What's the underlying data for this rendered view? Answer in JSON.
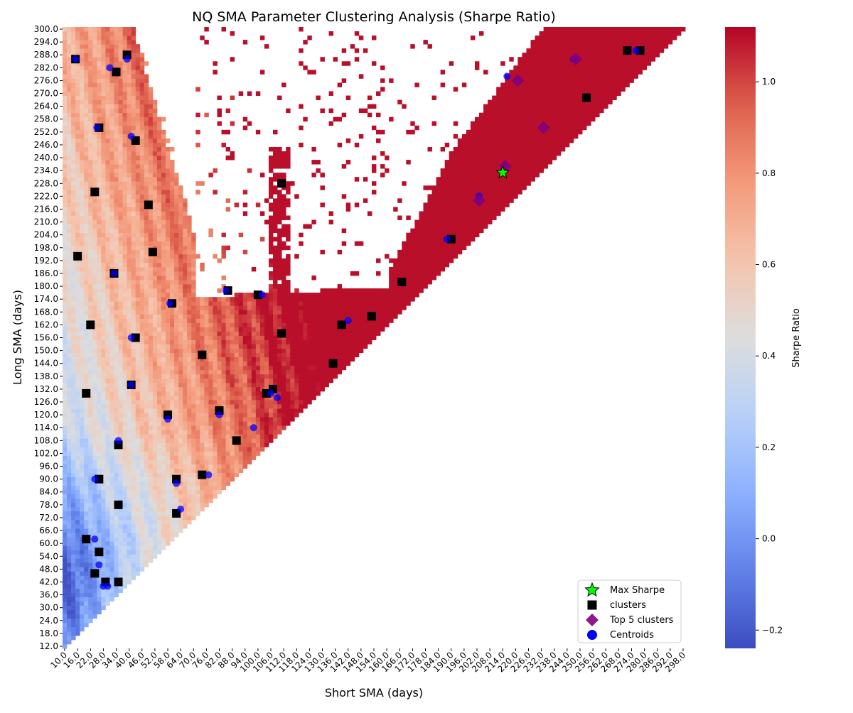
{
  "chart_data": {
    "type": "heatmap",
    "title": "NQ SMA Parameter Clustering Analysis (Sharpe Ratio)",
    "xlabel": "Short SMA (days)",
    "ylabel": "Long SMA (days)",
    "colorbar_label": "Sharpe Ratio",
    "colormap": "coolwarm",
    "value_range": [
      -0.24,
      1.12
    ],
    "colorbar_ticks": [
      "−0.2",
      "0.0",
      "0.2",
      "0.4",
      "0.6",
      "0.8",
      "1.0"
    ],
    "colorbar_tick_values": [
      -0.2,
      0.0,
      0.2,
      0.4,
      0.6,
      0.8,
      1.0
    ],
    "x_ticks": [
      "10.0",
      "16.0",
      "22.0",
      "28.0",
      "34.0",
      "40.0",
      "46.0",
      "52.0",
      "58.0",
      "64.0",
      "70.0",
      "76.0",
      "82.0",
      "88.0",
      "94.0",
      "100.0",
      "106.0",
      "112.0",
      "118.0",
      "124.0",
      "130.0",
      "136.0",
      "142.0",
      "148.0",
      "154.0",
      "160.0",
      "166.0",
      "172.0",
      "178.0",
      "184.0",
      "190.0",
      "196.0",
      "202.0",
      "208.0",
      "214.0",
      "220.0",
      "226.0",
      "232.0",
      "238.0",
      "244.0",
      "250.0",
      "256.0",
      "262.0",
      "268.0",
      "274.0",
      "280.0",
      "286.0",
      "292.0",
      "298.0"
    ],
    "y_ticks": [
      "300.0",
      "294.0",
      "288.0",
      "282.0",
      "276.0",
      "270.0",
      "264.0",
      "258.0",
      "252.0",
      "246.0",
      "240.0",
      "234.0",
      "228.0",
      "222.0",
      "216.0",
      "210.0",
      "204.0",
      "198.0",
      "192.0",
      "186.0",
      "180.0",
      "174.0",
      "168.0",
      "162.0",
      "156.0",
      "150.0",
      "144.0",
      "138.0",
      "132.0",
      "126.0",
      "120.0",
      "114.0",
      "108.0",
      "102.0",
      "96.0",
      "90.0",
      "84.0",
      "78.0",
      "72.0",
      "66.0",
      "60.0",
      "54.0",
      "48.0",
      "42.0",
      "36.0",
      "30.0",
      "24.0",
      "18.0",
      "12.0"
    ],
    "x_range": [
      10,
      300
    ],
    "y_range": [
      12,
      300
    ],
    "cell_step": 2,
    "grid": false,
    "legend_position": "bottom-right",
    "legend": [
      {
        "label": "Max Sharpe",
        "marker": "star",
        "color": "#00ff00"
      },
      {
        "label": "clusters",
        "marker": "square",
        "color": "#000000"
      },
      {
        "label": "Top 5 clusters",
        "marker": "diamond",
        "color": "#800080"
      },
      {
        "label": "Centroids",
        "marker": "circle",
        "color": "#0000ff"
      }
    ],
    "max_sharpe": {
      "x": 214,
      "y": 233,
      "value": 1.1
    },
    "clusters": [
      [
        15,
        286
      ],
      [
        39,
        288
      ],
      [
        34,
        280
      ],
      [
        26,
        254
      ],
      [
        43,
        248
      ],
      [
        24,
        224
      ],
      [
        49,
        218
      ],
      [
        16,
        194
      ],
      [
        51,
        196
      ],
      [
        33,
        186
      ],
      [
        60,
        172
      ],
      [
        22,
        162
      ],
      [
        43,
        156
      ],
      [
        74,
        148
      ],
      [
        41,
        134
      ],
      [
        20,
        130
      ],
      [
        58,
        120
      ],
      [
        82,
        122
      ],
      [
        90,
        108
      ],
      [
        35,
        106
      ],
      [
        62,
        90
      ],
      [
        26,
        90
      ],
      [
        74,
        92
      ],
      [
        35,
        78
      ],
      [
        62,
        74
      ],
      [
        20,
        62
      ],
      [
        26,
        56
      ],
      [
        24,
        46
      ],
      [
        29,
        42
      ],
      [
        35,
        42
      ],
      [
        111,
        228
      ],
      [
        86,
        178
      ],
      [
        100,
        176
      ],
      [
        111,
        158
      ],
      [
        135,
        144
      ],
      [
        107,
        132
      ],
      [
        104,
        130
      ],
      [
        139,
        162
      ],
      [
        153,
        166
      ],
      [
        167,
        182
      ],
      [
        190,
        202
      ],
      [
        253,
        268
      ],
      [
        272,
        290
      ],
      [
        278,
        290
      ]
    ],
    "top5_clusters": [
      [
        215,
        236
      ],
      [
        221,
        276
      ],
      [
        233,
        254
      ],
      [
        248,
        286
      ],
      [
        203,
        220
      ]
    ],
    "centroids": [
      [
        15,
        286
      ],
      [
        39,
        286
      ],
      [
        31,
        282
      ],
      [
        25,
        254
      ],
      [
        41,
        250
      ],
      [
        41,
        156
      ],
      [
        33,
        186
      ],
      [
        59,
        172
      ],
      [
        85,
        178
      ],
      [
        102,
        176
      ],
      [
        41,
        134
      ],
      [
        106,
        130
      ],
      [
        58,
        118
      ],
      [
        82,
        120
      ],
      [
        98,
        114
      ],
      [
        35,
        108
      ],
      [
        62,
        88
      ],
      [
        64,
        76
      ],
      [
        24,
        90
      ],
      [
        77,
        92
      ],
      [
        24,
        62
      ],
      [
        26,
        50
      ],
      [
        30,
        40
      ],
      [
        28,
        40
      ],
      [
        109,
        128
      ],
      [
        142,
        164
      ],
      [
        188,
        202
      ],
      [
        216,
        278
      ],
      [
        247,
        286
      ],
      [
        203,
        222
      ],
      [
        276,
        290
      ]
    ]
  }
}
